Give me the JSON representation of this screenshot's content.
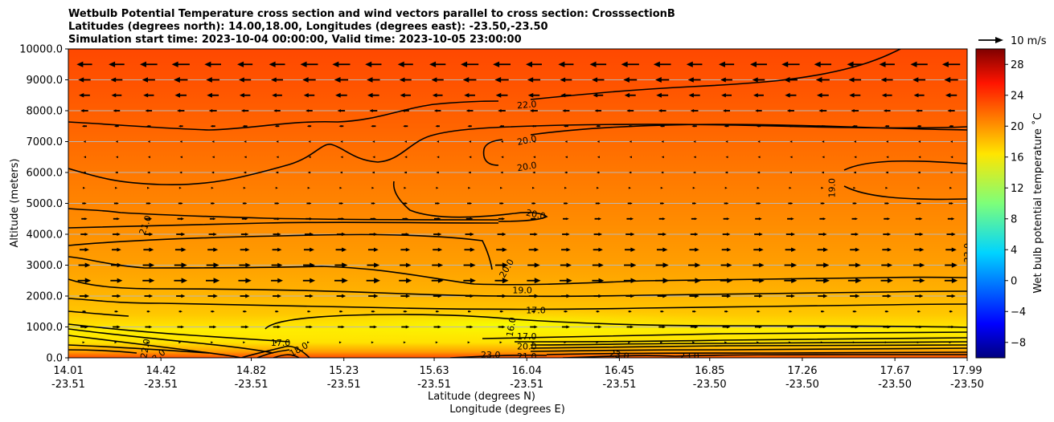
{
  "chart_data": {
    "type": "heatmap",
    "title_lines": [
      "Wetbulb Potential Temperature cross section and wind vectors parallel to cross section: CrosssectionB",
      "Latitudes (degrees north): 14.00,18.00, Longitudes (degrees east): -23.50,-23.50",
      "Simulation start time: 2023-10-04 00:00:00, Valid time: 2023-10-05 23:00:00"
    ],
    "xlabel_lat": "Latitude (degrees N)",
    "xlabel_lon": "Longitude (degrees E)",
    "ylabel": "Altitude (meters)",
    "ylim": [
      0,
      10000
    ],
    "yticks": [
      0,
      1000,
      2000,
      3000,
      4000,
      5000,
      6000,
      7000,
      8000,
      9000,
      10000
    ],
    "ytick_labels": [
      "0.0",
      "1000.0",
      "2000.0",
      "3000.0",
      "4000.0",
      "5000.0",
      "6000.0",
      "7000.0",
      "8000.0",
      "9000.0",
      "10000.0"
    ],
    "xticks": [
      {
        "lat": "14.01",
        "lon": "-23.51"
      },
      {
        "lat": "14.42",
        "lon": "-23.51"
      },
      {
        "lat": "14.82",
        "lon": "-23.51"
      },
      {
        "lat": "15.23",
        "lon": "-23.51"
      },
      {
        "lat": "15.63",
        "lon": "-23.51"
      },
      {
        "lat": "16.04",
        "lon": "-23.51"
      },
      {
        "lat": "16.45",
        "lon": "-23.51"
      },
      {
        "lat": "16.85",
        "lon": "-23.50"
      },
      {
        "lat": "17.26",
        "lon": "-23.50"
      },
      {
        "lat": "17.67",
        "lon": "-23.50"
      },
      {
        "lat": "17.99",
        "lon": "-23.50"
      }
    ],
    "grid": "horizontal",
    "colorbar": {
      "label": "Wet bulb potential temperature $^\\circ$C",
      "label_display": "Wet bulb potential temperature ˚C",
      "min": -10,
      "max": 30,
      "ticks": [
        -8,
        -4,
        0,
        4,
        8,
        12,
        16,
        20,
        24,
        28
      ],
      "tick_labels": [
        "−8",
        "−4",
        "0",
        "4",
        "8",
        "12",
        "16",
        "20",
        "24",
        "28"
      ],
      "colormap": "jet"
    },
    "field_approx": {
      "description": "Wet bulb potential temperature (°C) vs altitude, roughly uniform along cross section",
      "altitude_m": [
        0,
        250,
        500,
        1000,
        1500,
        2000,
        3000,
        4000,
        5000,
        6000,
        7000,
        8000,
        9000,
        10000
      ],
      "value_c": [
        23,
        21,
        17,
        16,
        17,
        18.5,
        19.5,
        20,
        20.5,
        21,
        21.5,
        22,
        23,
        23.5
      ]
    },
    "contour_labels": [
      {
        "text": "22.0",
        "lat": 16.04,
        "alt": 8200,
        "rot": -5
      },
      {
        "text": "20.0",
        "lat": 16.04,
        "alt": 7050,
        "rot": -12
      },
      {
        "text": "20.0",
        "lat": 16.04,
        "alt": 6200,
        "rot": -10
      },
      {
        "text": "20.0",
        "lat": 16.08,
        "alt": 4650,
        "rot": 12
      },
      {
        "text": "21.0",
        "lat": 14.35,
        "alt": 4300,
        "rot": -70
      },
      {
        "text": "19.0",
        "lat": 17.39,
        "alt": 5500,
        "rot": -90
      },
      {
        "text": "20.0",
        "lat": 15.95,
        "alt": 2900,
        "rot": -60
      },
      {
        "text": "19.0",
        "lat": 16.02,
        "alt": 2200,
        "rot": 0
      },
      {
        "text": "17.0",
        "lat": 16.08,
        "alt": 1550,
        "rot": 0
      },
      {
        "text": "17.0",
        "lat": 16.04,
        "alt": 700,
        "rot": 0
      },
      {
        "text": "16.0",
        "lat": 15.97,
        "alt": 1000,
        "rot": -80
      },
      {
        "text": "20.0",
        "lat": 16.04,
        "alt": 380,
        "rot": 0
      },
      {
        "text": "21.0",
        "lat": 16.04,
        "alt": 50,
        "rot": 0
      },
      {
        "text": "23.0",
        "lat": 15.88,
        "alt": 100,
        "rot": 0
      },
      {
        "text": "23.0",
        "lat": 16.45,
        "alt": 100,
        "rot": 10
      },
      {
        "text": "23.0",
        "lat": 16.76,
        "alt": 60,
        "rot": 0
      },
      {
        "text": "23.0",
        "lat": 14.4,
        "alt": 20,
        "rot": -40
      },
      {
        "text": "22.0",
        "lat": 14.35,
        "alt": 300,
        "rot": -80
      },
      {
        "text": "17.0",
        "lat": 14.95,
        "alt": 500,
        "rot": 0
      },
      {
        "text": "18.0",
        "lat": 15.03,
        "alt": 280,
        "rot": -30
      },
      {
        "text": "22.0",
        "lat": 17.99,
        "alt": 3400,
        "rot": -90
      }
    ],
    "vector_key": {
      "label": "10 m/s",
      "speed_ms": 10
    },
    "wind_rows": [
      {
        "alt": 9500,
        "u": -9.0
      },
      {
        "alt": 9000,
        "u": -7.0
      },
      {
        "alt": 8500,
        "u": -6.0
      },
      {
        "alt": 8000,
        "u": -4.0
      },
      {
        "alt": 7500,
        "u": -2.5
      },
      {
        "alt": 7000,
        "u": -1.0
      },
      {
        "alt": 6500,
        "u": -0.8
      },
      {
        "alt": 6000,
        "u": -1.5
      },
      {
        "alt": 5500,
        "u": 1.0
      },
      {
        "alt": 5000,
        "u": 2.5
      },
      {
        "alt": 4500,
        "u": 3.5
      },
      {
        "alt": 4000,
        "u": 4.5
      },
      {
        "alt": 3500,
        "u": 5.5
      },
      {
        "alt": 3000,
        "u": 6.5
      },
      {
        "alt": 2500,
        "u": 7.0
      },
      {
        "alt": 2000,
        "u": 5.0
      },
      {
        "alt": 1500,
        "u": 2.0
      },
      {
        "alt": 1000,
        "u": 4.0
      },
      {
        "alt": 500,
        "u": 0.5
      }
    ]
  }
}
